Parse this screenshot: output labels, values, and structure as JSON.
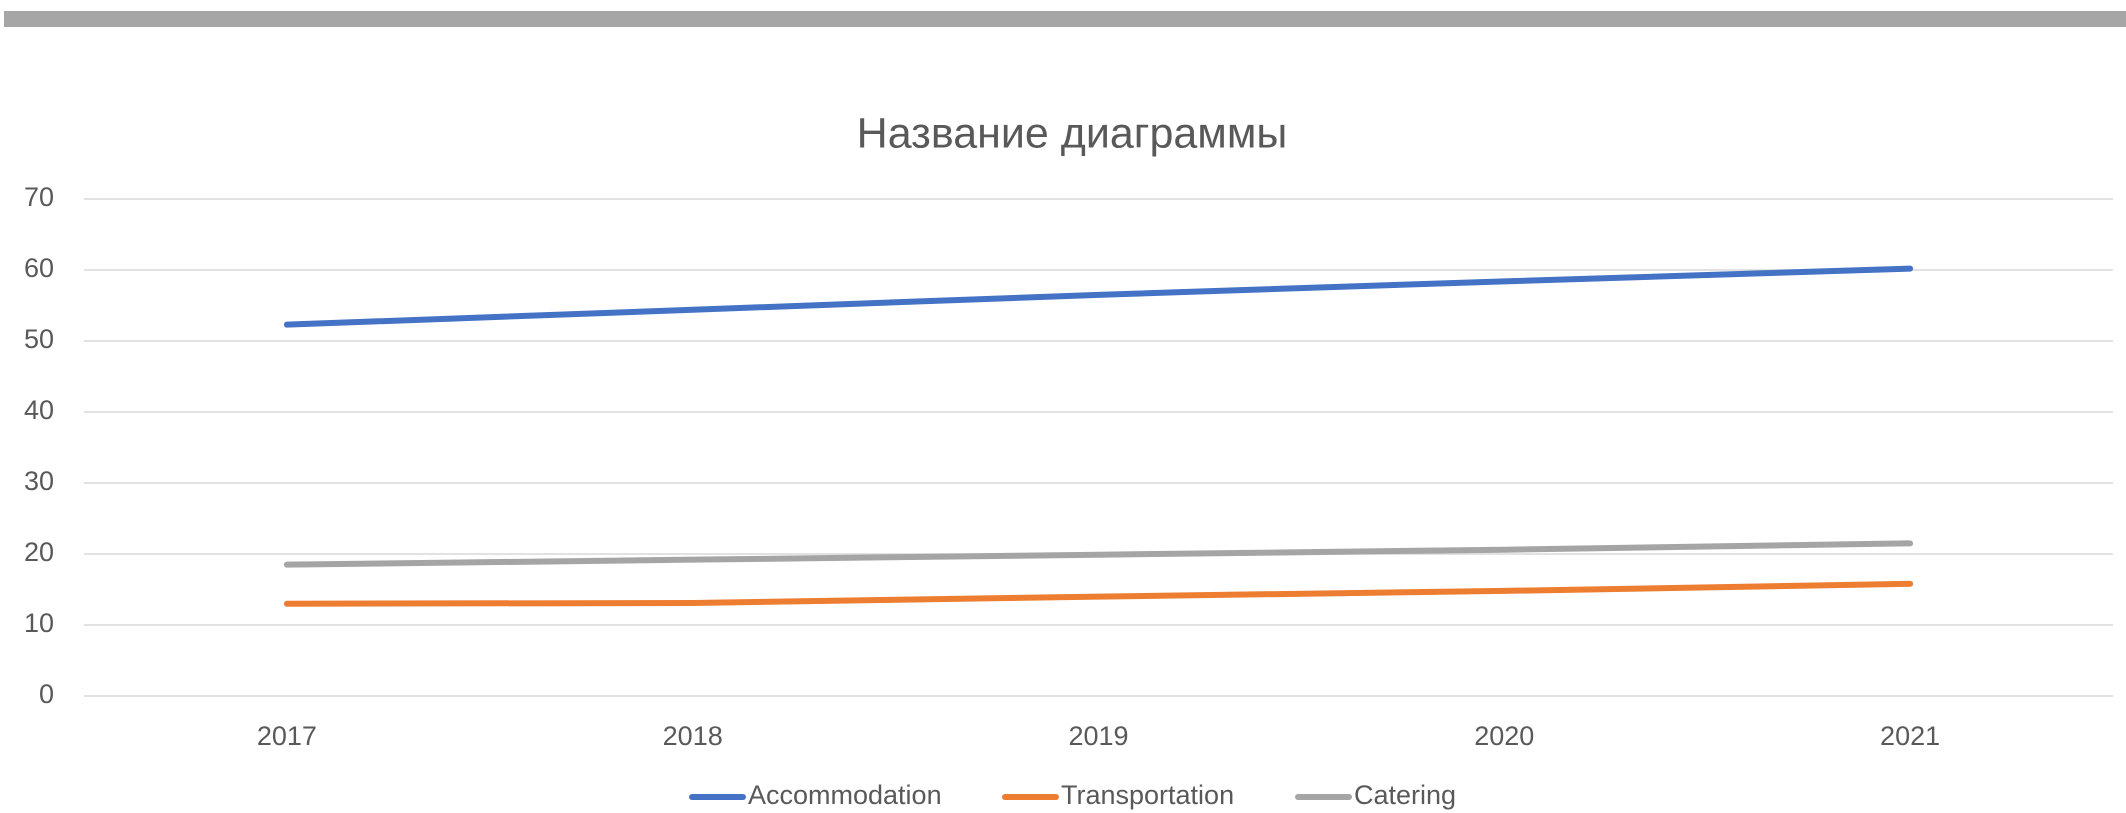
{
  "chart_data": {
    "type": "line",
    "title": "Название диаграммы",
    "categories": [
      "2017",
      "2018",
      "2019",
      "2020",
      "2021"
    ],
    "series": [
      {
        "name": "Accommodation",
        "color": "#4472c4",
        "values": [
          52.3,
          54.4,
          56.5,
          58.4,
          60.2
        ]
      },
      {
        "name": "Transportation",
        "color": "#ed7d31",
        "values": [
          13,
          13.1,
          14,
          14.8,
          15.8
        ]
      },
      {
        "name": "Catering",
        "color": "#a5a5a5",
        "values": [
          18.5,
          19.2,
          19.9,
          20.6,
          21.5
        ]
      }
    ],
    "ylim": [
      0,
      70
    ],
    "yticks": [
      0,
      10,
      20,
      30,
      40,
      50,
      60,
      70
    ],
    "grid": true,
    "legend": "bottom"
  }
}
